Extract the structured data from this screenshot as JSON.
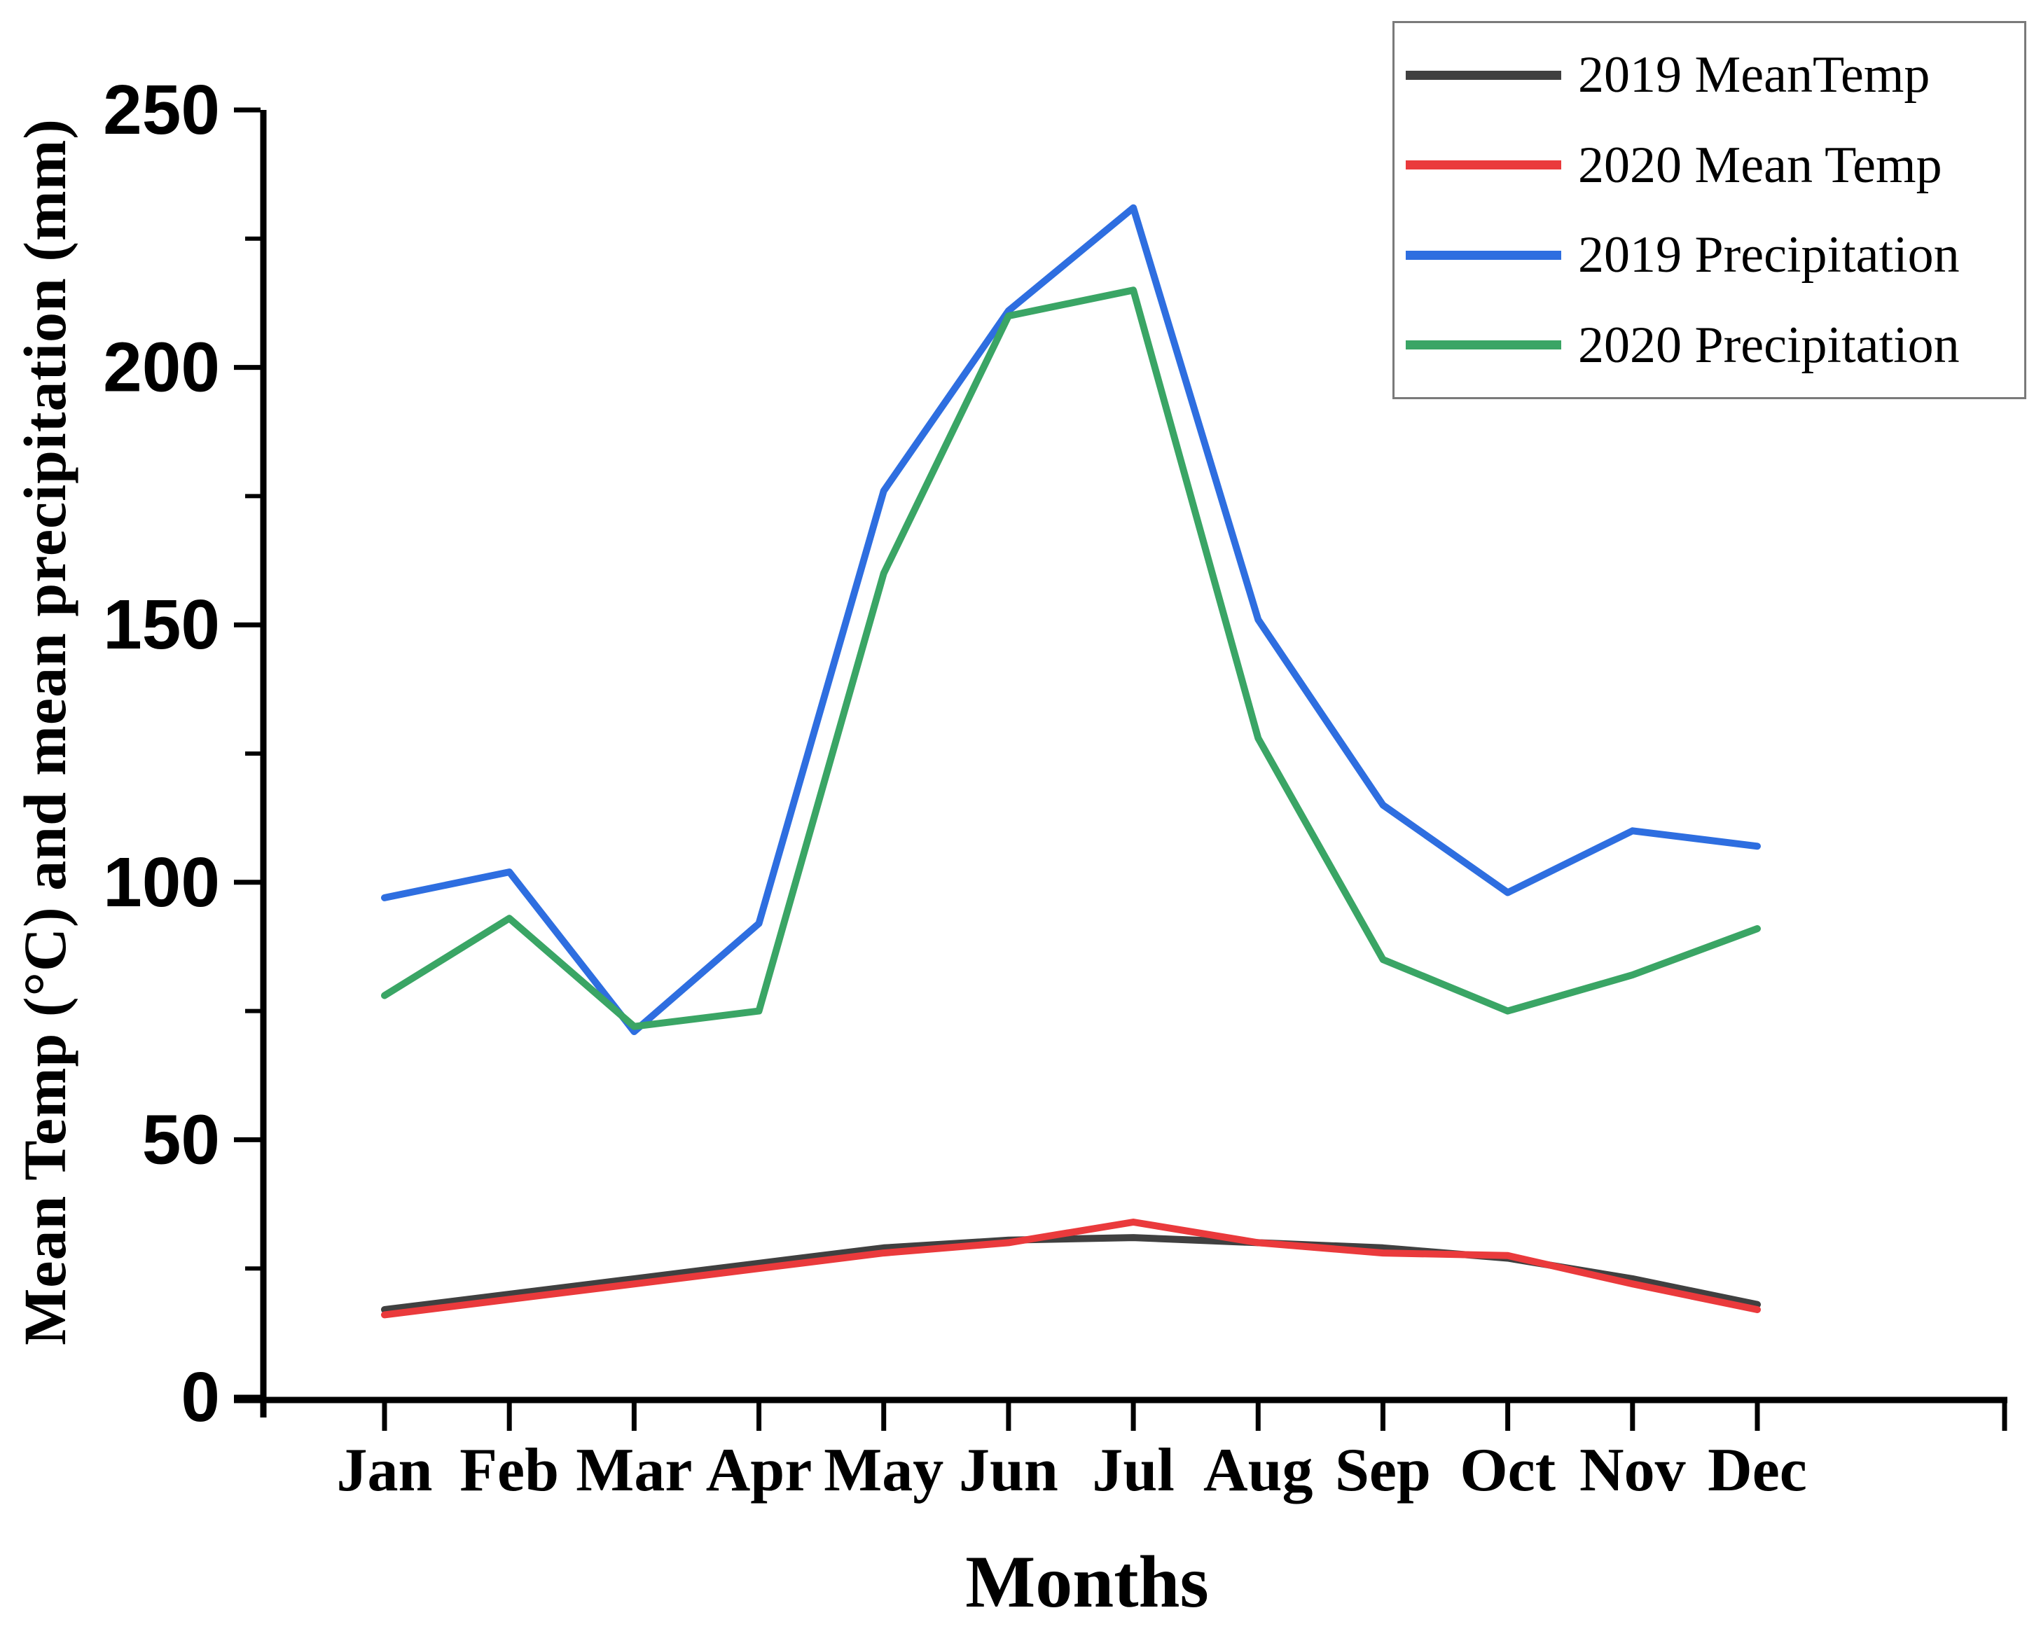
{
  "figure": {
    "background": "#ffffff",
    "axis_color": "#000000",
    "legend_border_color": "#7a7a7a"
  },
  "chart_data": {
    "type": "line",
    "title": "",
    "xlabel": "Months",
    "ylabel": "Mean Temp (°C) and mean precipitation (mm)",
    "categories": [
      "Jan",
      "Feb",
      "Mar",
      "Apr",
      "May",
      "Jun",
      "Jul",
      "Aug",
      "Sep",
      "Oct",
      "Nov",
      "Dec"
    ],
    "ylim": [
      0,
      250
    ],
    "y_major_ticks": [
      0,
      50,
      100,
      150,
      200,
      250
    ],
    "y_minor_ticks": [
      25,
      75,
      125,
      175,
      225
    ],
    "grid": false,
    "legend_position": "top-right",
    "series": [
      {
        "name": "2019 MeanTemp",
        "color": "#404040",
        "values": [
          17,
          20,
          23,
          26,
          29,
          30.5,
          31,
          30,
          29,
          27,
          23,
          18
        ]
      },
      {
        "name": "2020 Mean Temp",
        "color": "#ea3a3c",
        "values": [
          16,
          19,
          22,
          25,
          28,
          30,
          34,
          30,
          28,
          27.5,
          22,
          17
        ]
      },
      {
        "name": "2019 Precipitation",
        "color": "#2e6ee0",
        "values": [
          97,
          102,
          71,
          92,
          176,
          211,
          231,
          151,
          115,
          98,
          110,
          107
        ]
      },
      {
        "name": "2020 Precipitation",
        "color": "#3aa565",
        "values": [
          78,
          93,
          72,
          75,
          160,
          210,
          215,
          128,
          85,
          75,
          82,
          91
        ]
      }
    ]
  }
}
